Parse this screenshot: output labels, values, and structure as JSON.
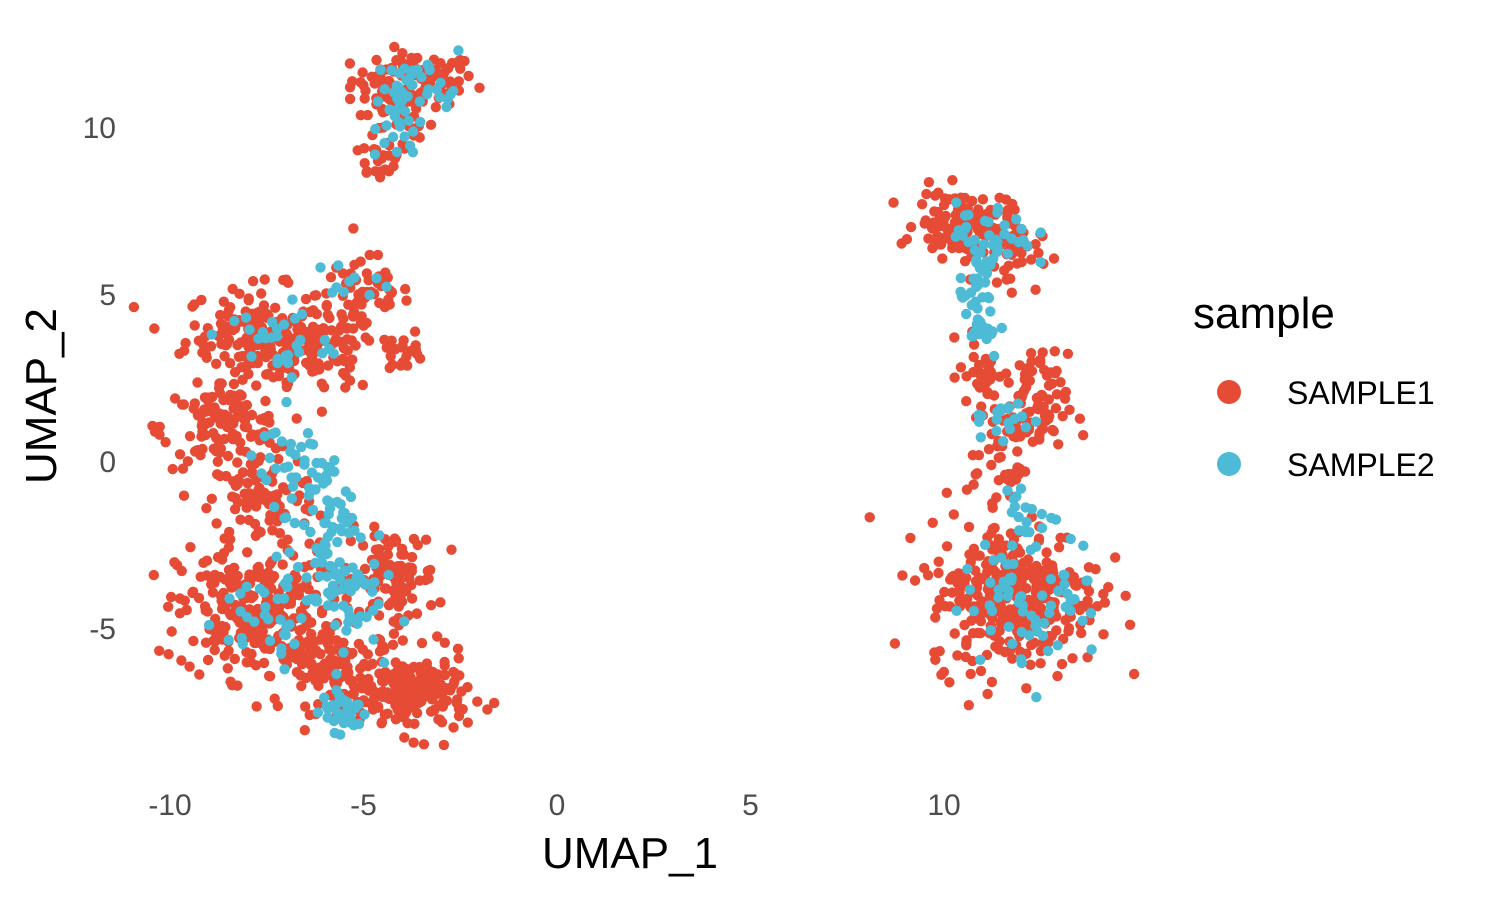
{
  "chart_data": {
    "type": "scatter",
    "title": "",
    "xlabel": "UMAP_1",
    "ylabel": "UMAP_2",
    "xlim": [
      -10.5,
      14.5
    ],
    "ylim": [
      -9.7,
      12.6
    ],
    "x_ticks": [
      -10,
      -5,
      0,
      5,
      10
    ],
    "y_ticks": [
      -5,
      0,
      5,
      10
    ],
    "x_tick_labels": [
      "-10",
      "-5",
      "0",
      "5",
      "10"
    ],
    "y_tick_labels": [
      "-5",
      "0",
      "5",
      "10"
    ],
    "grid": false,
    "legend": {
      "title": "sample",
      "placement": "right",
      "entries": [
        {
          "label": "SAMPLE1",
          "color": "#E64B35"
        },
        {
          "label": "SAMPLE2",
          "color": "#4DBBD5"
        }
      ]
    },
    "series": [
      {
        "name": "SAMPLE1",
        "color": "#E64B35",
        "clusters": [
          {
            "cx": -3.7,
            "cy": 11.4,
            "sx": 0.8,
            "sy": 0.4,
            "n": 90
          },
          {
            "cx": -4.2,
            "cy": 10.2,
            "sx": 0.5,
            "sy": 0.6,
            "n": 40
          },
          {
            "cx": -4.6,
            "cy": 9.0,
            "sx": 0.35,
            "sy": 0.3,
            "n": 20
          },
          {
            "cx": -7.8,
            "cy": 3.8,
            "sx": 0.9,
            "sy": 0.7,
            "n": 160
          },
          {
            "cx": -5.0,
            "cy": 5.0,
            "sx": 0.6,
            "sy": 0.6,
            "n": 60
          },
          {
            "cx": -6.2,
            "cy": 3.2,
            "sx": 0.8,
            "sy": 0.6,
            "n": 90
          },
          {
            "cx": -4.0,
            "cy": 3.3,
            "sx": 0.3,
            "sy": 0.3,
            "n": 20
          },
          {
            "cx": -8.6,
            "cy": 1.0,
            "sx": 0.8,
            "sy": 0.6,
            "n": 120
          },
          {
            "cx": -7.6,
            "cy": -1.2,
            "sx": 0.7,
            "sy": 0.7,
            "n": 90
          },
          {
            "cx": -7.8,
            "cy": -4.5,
            "sx": 1.0,
            "sy": 1.0,
            "n": 260
          },
          {
            "cx": -4.3,
            "cy": -3.5,
            "sx": 0.6,
            "sy": 0.7,
            "n": 110
          },
          {
            "cx": -5.5,
            "cy": -6.3,
            "sx": 0.8,
            "sy": 0.6,
            "n": 110
          },
          {
            "cx": -3.7,
            "cy": -7.0,
            "sx": 0.7,
            "sy": 0.6,
            "n": 170
          },
          {
            "cx": 10.5,
            "cy": 7.1,
            "sx": 0.6,
            "sy": 0.5,
            "n": 130
          },
          {
            "cx": 11.7,
            "cy": 6.2,
            "sx": 0.4,
            "sy": 0.5,
            "n": 40
          },
          {
            "cx": 12.2,
            "cy": 1.6,
            "sx": 0.5,
            "sy": 0.8,
            "n": 90
          },
          {
            "cx": 11.0,
            "cy": 2.6,
            "sx": 0.3,
            "sy": 0.6,
            "n": 30
          },
          {
            "cx": 11.4,
            "cy": -0.2,
            "sx": 0.4,
            "sy": 0.5,
            "n": 30
          },
          {
            "cx": 11.8,
            "cy": -4.0,
            "sx": 1.1,
            "sy": 1.1,
            "n": 330
          }
        ]
      },
      {
        "name": "SAMPLE2",
        "color": "#4DBBD5",
        "clusters": [
          {
            "cx": -3.5,
            "cy": 11.2,
            "sx": 0.6,
            "sy": 0.4,
            "n": 35
          },
          {
            "cx": -4.1,
            "cy": 10.0,
            "sx": 0.3,
            "sy": 0.5,
            "n": 20
          },
          {
            "cx": -7.2,
            "cy": 3.6,
            "sx": 0.7,
            "sy": 0.6,
            "n": 30
          },
          {
            "cx": -5.4,
            "cy": 5.4,
            "sx": 0.4,
            "sy": 0.3,
            "n": 10
          },
          {
            "cx": -7.0,
            "cy": 0.0,
            "sx": 0.6,
            "sy": 0.5,
            "n": 25
          },
          {
            "cx": -6.0,
            "cy": -1.8,
            "sx": 0.5,
            "sy": 1.0,
            "n": 60
          },
          {
            "cx": -5.6,
            "cy": -4.0,
            "sx": 0.5,
            "sy": 0.8,
            "n": 50
          },
          {
            "cx": -5.5,
            "cy": -7.5,
            "sx": 0.3,
            "sy": 0.3,
            "n": 35
          },
          {
            "cx": -7.6,
            "cy": -4.6,
            "sx": 0.8,
            "sy": 0.9,
            "n": 35
          },
          {
            "cx": 10.9,
            "cy": 4.8,
            "sx": 0.25,
            "sy": 1.0,
            "n": 50
          },
          {
            "cx": 11.3,
            "cy": 6.8,
            "sx": 0.5,
            "sy": 0.5,
            "n": 30
          },
          {
            "cx": 11.5,
            "cy": 1.5,
            "sx": 0.4,
            "sy": 0.7,
            "n": 20
          },
          {
            "cx": 12.3,
            "cy": -4.0,
            "sx": 0.9,
            "sy": 1.0,
            "n": 70
          },
          {
            "cx": 12.0,
            "cy": -1.6,
            "sx": 0.3,
            "sy": 0.4,
            "n": 15
          }
        ]
      }
    ]
  }
}
